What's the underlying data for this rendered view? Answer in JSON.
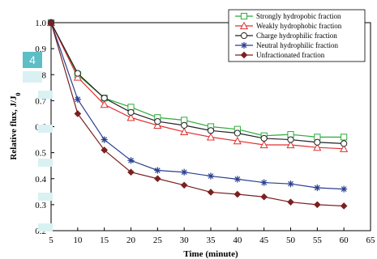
{
  "overlay": {
    "badge": "4"
  },
  "chart_data": {
    "type": "line",
    "title": "",
    "xlabel": "Time (minute)",
    "ylabel": "Relative flux, J/J",
    "ylabel_sub": "0",
    "xlim": [
      5,
      65
    ],
    "ylim": [
      0.2,
      1.0
    ],
    "xticks": [
      "5",
      "10",
      "15",
      "20",
      "25",
      "30",
      "35",
      "40",
      "45",
      "50",
      "55",
      "60",
      "65"
    ],
    "yticks": [
      "0.2",
      "0.3",
      "0.4",
      "0.5",
      "0.6",
      "0.7",
      "0.8",
      "0.9",
      "1.0"
    ],
    "x": [
      5,
      10,
      15,
      20,
      25,
      30,
      35,
      40,
      45,
      50,
      55,
      60
    ],
    "legend_position": "top-right",
    "series": [
      {
        "name": "Strongly hydropobic fraction",
        "color": "#2eaa3a",
        "marker": "square-open",
        "values": [
          1.0,
          0.8,
          0.71,
          0.675,
          0.635,
          0.625,
          0.6,
          0.59,
          0.565,
          0.57,
          0.56,
          0.56
        ]
      },
      {
        "name": "Weakly hydrophobic fraction",
        "color": "#e03030",
        "marker": "triangle-open",
        "values": [
          1.0,
          0.79,
          0.685,
          0.635,
          0.605,
          0.58,
          0.56,
          0.545,
          0.53,
          0.53,
          0.52,
          0.515
        ]
      },
      {
        "name": "Charge hydrophilic fraction",
        "color": "#222222",
        "marker": "circle-open",
        "values": [
          1.0,
          0.805,
          0.71,
          0.655,
          0.62,
          0.605,
          0.585,
          0.575,
          0.555,
          0.55,
          0.54,
          0.535
        ]
      },
      {
        "name": "Neutral hydrophilic fraction",
        "color": "#2a3f8f",
        "marker": "star",
        "values": [
          1.0,
          0.705,
          0.55,
          0.47,
          0.432,
          0.425,
          0.41,
          0.398,
          0.385,
          0.38,
          0.365,
          0.36
        ]
      },
      {
        "name": "Unfractionated fraction",
        "color": "#7a2020",
        "marker": "diamond-filled",
        "values": [
          1.0,
          0.65,
          0.51,
          0.425,
          0.4,
          0.375,
          0.348,
          0.34,
          0.33,
          0.31,
          0.3,
          0.295
        ]
      }
    ]
  }
}
